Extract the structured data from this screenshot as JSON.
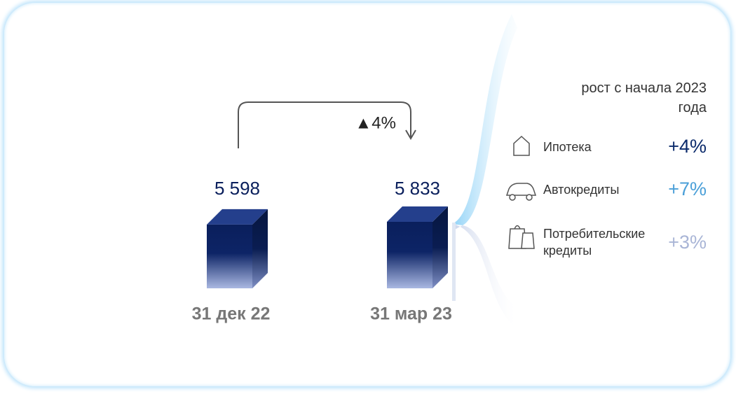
{
  "chart_data": {
    "type": "bar",
    "categories": [
      "31 дек 22",
      "31 мар 23"
    ],
    "values": [
      5598,
      5833
    ],
    "value_labels": [
      "5 598",
      "5 833"
    ],
    "annotation": "▲4%",
    "color": "#0a1f5c"
  },
  "growth": {
    "title": "рост с начала 2023 года",
    "items": [
      {
        "label": "Ипотека",
        "change": "+4%",
        "color": "#0b2a6b"
      },
      {
        "label": "Автокредиты",
        "change": "+7%",
        "color": "#4a9fd8"
      },
      {
        "label": "Потребительские кредиты",
        "change": "+3%",
        "color": "#a9b5d6"
      }
    ]
  }
}
